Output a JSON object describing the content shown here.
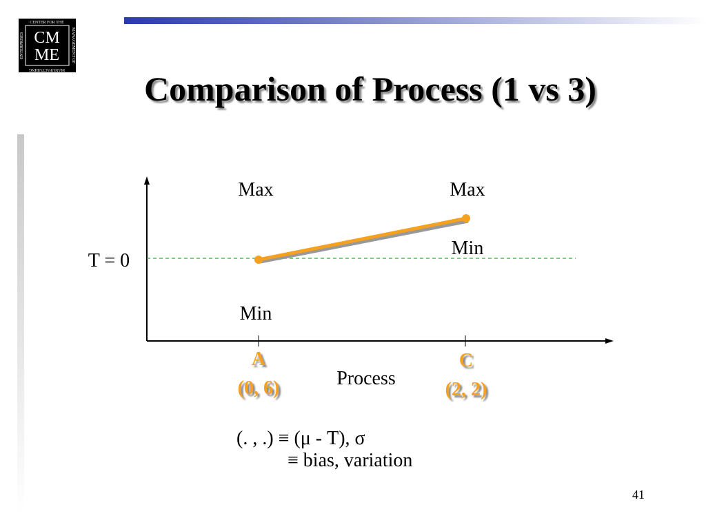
{
  "header": {
    "title": "Comparison of Process (1 vs 3)",
    "logo": {
      "line1": "CM",
      "line2": "ME",
      "ring_top": "CENTER FOR THE",
      "ring_right": "MANAGEMENT OF",
      "ring_bottom": "MANUFACTURING",
      "ring_left": "ENTERPRISES"
    }
  },
  "diagram": {
    "target_label": "T = 0",
    "x_axis_label": "Process",
    "points": [
      {
        "name": "A",
        "coords": "(0, 6)",
        "max_label": "Max",
        "min_label": "Min"
      },
      {
        "name": "C",
        "coords": "(2, 2)",
        "max_label": "Max",
        "min_label": "Min"
      }
    ],
    "legend_line1": "(. , .) ≡ (μ - T), σ",
    "legend_line2": "≡ bias, variation"
  },
  "footer": {
    "page_number": "41"
  }
}
